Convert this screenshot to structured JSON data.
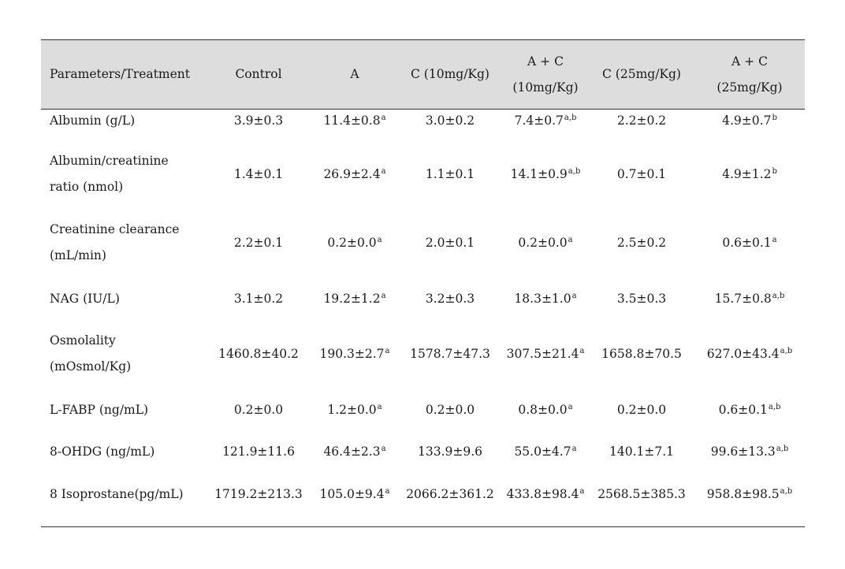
{
  "table": {
    "headers": [
      [
        "Parameters/Treatment"
      ],
      [
        "Control"
      ],
      [
        "A"
      ],
      [
        "C (10mg/Kg)"
      ],
      [
        "A + C",
        "(10mg/Kg)"
      ],
      [
        "C (25mg/Kg)"
      ],
      [
        "A + C",
        "(25mg/Kg)"
      ]
    ],
    "rows": [
      {
        "param": [
          "Albumin (g/L)"
        ],
        "cells": [
          {
            "v": "3.9±0.3",
            "s": ""
          },
          {
            "v": "11.4±0.8",
            "s": "a"
          },
          {
            "v": "3.0±0.2",
            "s": ""
          },
          {
            "v": "7.4±0.7",
            "s": "a,b"
          },
          {
            "v": "2.2±0.2",
            "s": ""
          },
          {
            "v": "4.9±0.7",
            "s": "b"
          }
        ]
      },
      {
        "param": [
          "Albumin/creatinine",
          "ratio (nmol)"
        ],
        "cells": [
          {
            "v": "1.4±0.1",
            "s": ""
          },
          {
            "v": "26.9±2.4",
            "s": "a"
          },
          {
            "v": "1.1±0.1",
            "s": ""
          },
          {
            "v": "14.1±0.9",
            "s": "a,b"
          },
          {
            "v": "0.7±0.1",
            "s": ""
          },
          {
            "v": "4.9±1.2",
            "s": "b"
          }
        ]
      },
      {
        "param": [
          "Creatinine clearance",
          "(mL/min)"
        ],
        "cells": [
          {
            "v": "2.2±0.1",
            "s": ""
          },
          {
            "v": "0.2±0.0",
            "s": "a"
          },
          {
            "v": "2.0±0.1",
            "s": ""
          },
          {
            "v": "0.2±0.0",
            "s": "a"
          },
          {
            "v": "2.5±0.2",
            "s": ""
          },
          {
            "v": "0.6±0.1",
            "s": "a"
          }
        ]
      },
      {
        "param": [
          "NAG (IU/L)"
        ],
        "cells": [
          {
            "v": "3.1±0.2",
            "s": ""
          },
          {
            "v": "19.2±1.2",
            "s": "a"
          },
          {
            "v": "3.2±0.3",
            "s": ""
          },
          {
            "v": "18.3±1.0",
            "s": "a"
          },
          {
            "v": "3.5±0.3",
            "s": ""
          },
          {
            "v": "15.7±0.8",
            "s": "a,b"
          }
        ]
      },
      {
        "param": [
          "Osmolality",
          "(mOsmol/Kg)"
        ],
        "cells": [
          {
            "v": "1460.8±40.2",
            "s": ""
          },
          {
            "v": "190.3±2.7",
            "s": "a"
          },
          {
            "v": "1578.7±47.3",
            "s": ""
          },
          {
            "v": "307.5±21.4",
            "s": "a"
          },
          {
            "v": "1658.8±70.5",
            "s": ""
          },
          {
            "v": "627.0±43.4",
            "s": "a,b"
          }
        ]
      },
      {
        "param": [
          "L-FABP (ng/mL)"
        ],
        "cells": [
          {
            "v": "0.2±0.0",
            "s": ""
          },
          {
            "v": "1.2±0.0",
            "s": "a"
          },
          {
            "v": "0.2±0.0",
            "s": ""
          },
          {
            "v": "0.8±0.0",
            "s": "a"
          },
          {
            "v": "0.2±0.0",
            "s": ""
          },
          {
            "v": "0.6±0.1",
            "s": "a,b"
          }
        ]
      },
      {
        "param": [
          "8-OHDG (ng/mL)"
        ],
        "cells": [
          {
            "v": "121.9±11.6",
            "s": ""
          },
          {
            "v": "46.4±2.3",
            "s": "a"
          },
          {
            "v": "133.9±9.6",
            "s": ""
          },
          {
            "v": "55.0±4.7",
            "s": "a"
          },
          {
            "v": "140.1±7.1",
            "s": ""
          },
          {
            "v": "99.6±13.3",
            "s": "a,b"
          }
        ]
      },
      {
        "param": [
          "8 Isoprostane(pg/mL)"
        ],
        "cells": [
          {
            "v": "1719.2±213.3",
            "s": ""
          },
          {
            "v": "105.0±9.4",
            "s": "a"
          },
          {
            "v": "2066.2±361.2",
            "s": ""
          },
          {
            "v": "433.8±98.4",
            "s": "a"
          },
          {
            "v": "2568.5±385.3",
            "s": ""
          },
          {
            "v": "958.8±98.5",
            "s": "a,b"
          }
        ]
      }
    ]
  }
}
